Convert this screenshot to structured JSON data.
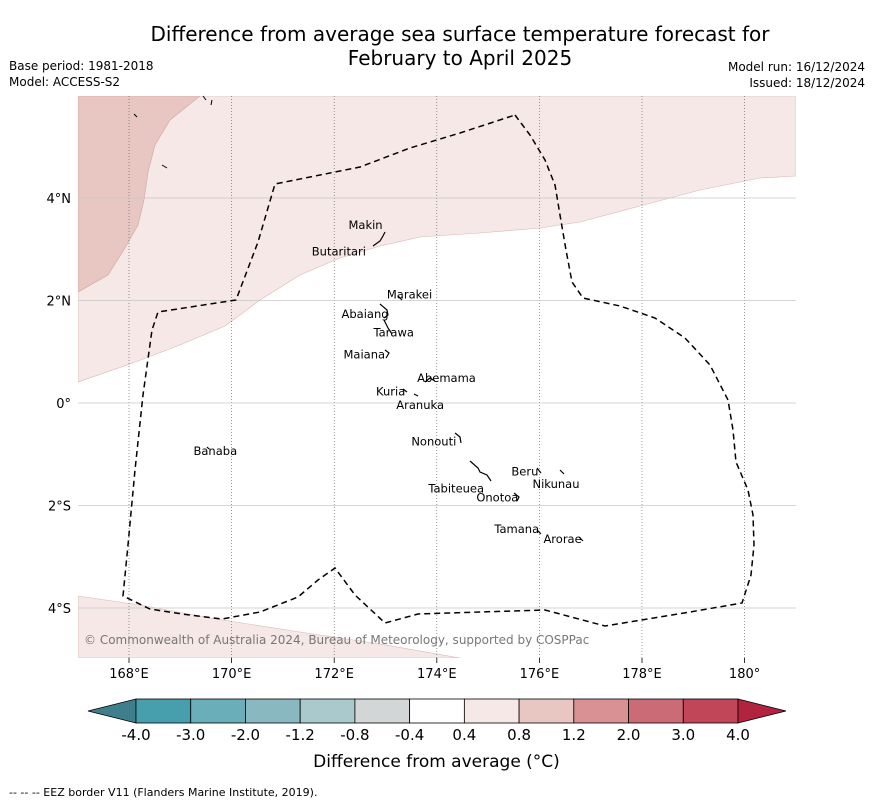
{
  "title_line1": "Difference from average sea surface temperature forecast for",
  "title_line2": "February to April 2025",
  "base_period": "Base period: 1981-2018",
  "model": "Model: ACCESS-S2",
  "model_run": "Model run: 16/12/2024",
  "issued": "Issued: 18/12/2024",
  "copyright": "© Commonwealth of Australia 2024, Bureau of Meteorology, supported by COSPPac",
  "colorbar_label": "Difference from average (°C)",
  "footer": "--  --  -- EEZ border V11 (Flanders Marine Institute, 2019).",
  "lon_labels": [
    {
      "lon": 168,
      "label": "168°E"
    },
    {
      "lon": 170,
      "label": "170°E"
    },
    {
      "lon": 172,
      "label": "172°E"
    },
    {
      "lon": 174,
      "label": "174°E"
    },
    {
      "lon": 176,
      "label": "176°E"
    },
    {
      "lon": 178,
      "label": "178°E"
    },
    {
      "lon": 180,
      "label": "180°"
    }
  ],
  "lat_labels": [
    {
      "lat": 4,
      "label": "4°N"
    },
    {
      "lat": 2,
      "label": "2°N"
    },
    {
      "lat": 0,
      "label": "0°"
    },
    {
      "lat": -2,
      "label": "2°S"
    },
    {
      "lat": -4,
      "label": "4°S"
    }
  ],
  "colorbar": {
    "ticks": [
      "-4.0",
      "-3.0",
      "-2.0",
      "-1.2",
      "-0.8",
      "-0.4",
      "0.4",
      "0.8",
      "1.2",
      "2.0",
      "3.0",
      "4.0"
    ],
    "colors": [
      "#3f7f8c",
      "#479fae",
      "#6aaeb9",
      "#89b8c1",
      "#a9c9cc",
      "#d3d6d6",
      "#ffffff",
      "#f5e8e6",
      "#e8c6c2",
      "#d99194",
      "#cb6b75",
      "#c14658",
      "#b0243f"
    ]
  },
  "islands": [
    {
      "name": "Makin",
      "lon": 172.98,
      "lat": 3.28
    },
    {
      "name": "Butaritari",
      "lon": 172.85,
      "lat": 3.0
    },
    {
      "name": "Marakei",
      "lon": 173.3,
      "lat": 2.0
    },
    {
      "name": "Abaiang",
      "lon": 173.0,
      "lat": 1.83
    },
    {
      "name": "Tarawa",
      "lon": 173.0,
      "lat": 1.4
    },
    {
      "name": "Maiana",
      "lon": 173.0,
      "lat": 0.95
    },
    {
      "name": "Abemama",
      "lon": 173.85,
      "lat": 0.45
    },
    {
      "name": "Kuria",
      "lon": 173.4,
      "lat": 0.22
    },
    {
      "name": "Aranuka",
      "lon": 173.6,
      "lat": 0.18
    },
    {
      "name": "Nonouti",
      "lon": 174.4,
      "lat": -0.65
    },
    {
      "name": "Tabiteuea",
      "lon": 174.85,
      "lat": -1.3
    },
    {
      "name": "Beru",
      "lon": 176.0,
      "lat": -1.32
    },
    {
      "name": "Nikunau",
      "lon": 176.45,
      "lat": -1.35
    },
    {
      "name": "Onotoa",
      "lon": 175.55,
      "lat": -1.8
    },
    {
      "name": "Tamana",
      "lon": 175.98,
      "lat": -2.5
    },
    {
      "name": "Arorae",
      "lon": 176.8,
      "lat": -2.65
    },
    {
      "name": "Banaba",
      "lon": 169.55,
      "lat": -0.86
    }
  ]
}
